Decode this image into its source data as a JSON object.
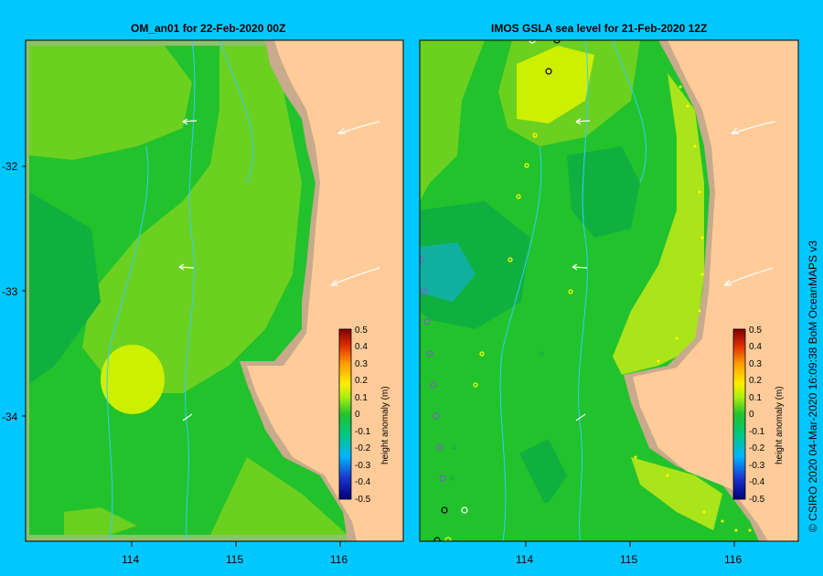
{
  "panels": [
    {
      "title": "OM_an01  for 22-Feb-2020 00Z"
    },
    {
      "title": "IMOS GSLA sea level  for 21-Feb-2020 12Z"
    }
  ],
  "lat_ticks": [
    "-32",
    "-33",
    "-34"
  ],
  "lon_ticks": [
    "114",
    "115",
    "116"
  ],
  "colorbar": {
    "label": "height anomaly (m)",
    "ticks": [
      "0.5",
      "0.4",
      "0.3",
      "0.2",
      "0.1",
      "0",
      "-0.1",
      "-0.2",
      "-0.3",
      "-0.4",
      "-0.5"
    ],
    "range": [
      -0.5,
      0.5
    ]
  },
  "credit": "© CSIRO 2020   04-Mar-2020 16:09:38 BoM OceanMAPS v3",
  "colors": {
    "background": "#00c8ff",
    "land": "#ffcc99",
    "shelf": "#c8aa8c",
    "green_dark": "#10b040",
    "green": "#22c22c",
    "green_light": "#6cd020",
    "yellow_green": "#aae41a",
    "yellow": "#ccf000"
  }
}
